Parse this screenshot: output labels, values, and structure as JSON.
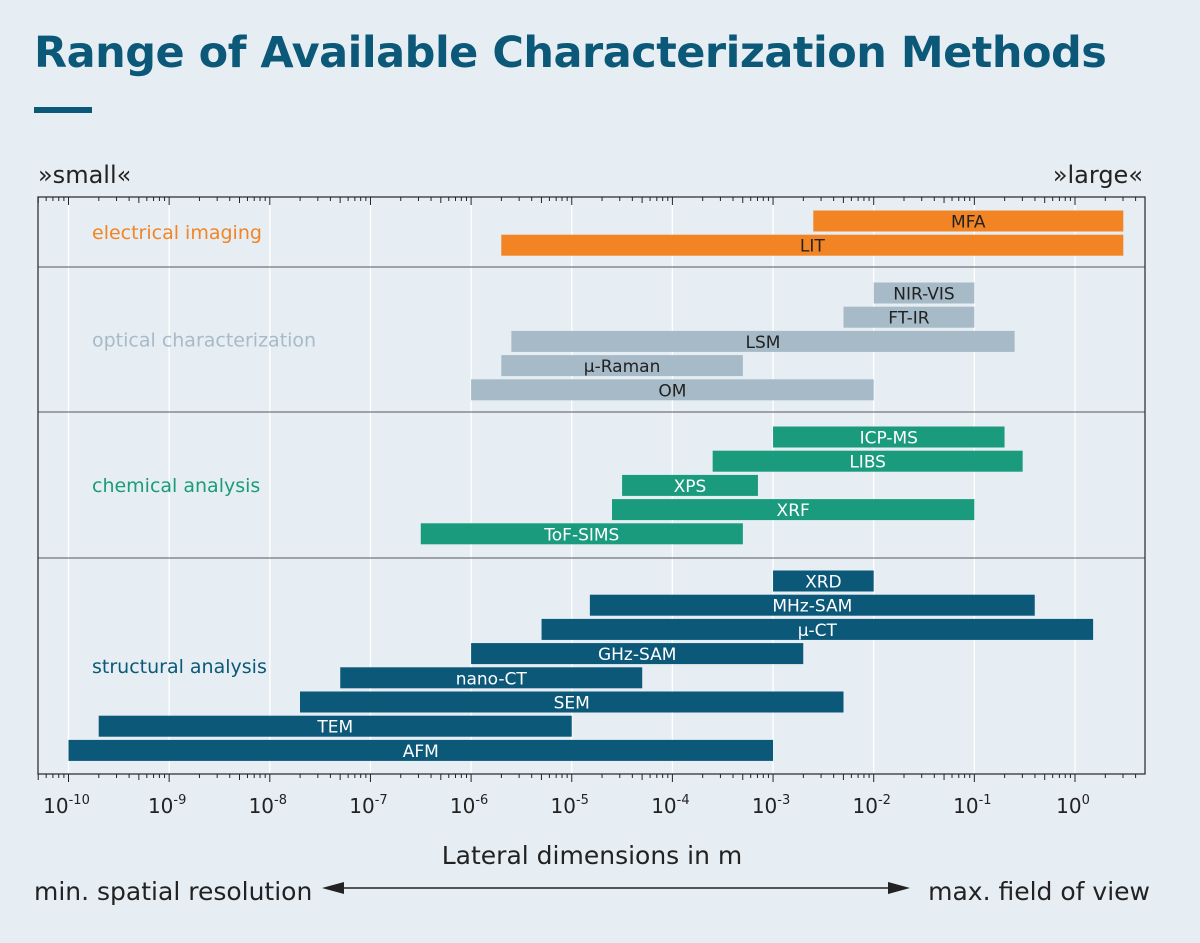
{
  "header": {
    "title": "Range of Available Characterization Methods",
    "small_label": "»small«",
    "large_label": "»large«"
  },
  "footer": {
    "xlabel": "Lateral dimensions in m",
    "left_caption": "min. spatial resolution",
    "right_caption": "max. field of view"
  },
  "colors": {
    "electrical": "#f28424",
    "optical": "#a6bac7",
    "chemical": "#1a9b7d",
    "structural": "#0b5878",
    "gridline": "#ffffff",
    "frame": "#333333"
  },
  "chart_data": {
    "type": "bar",
    "orientation": "horizontal",
    "xscale": "log",
    "xlim_exponent": [
      -10.3,
      0.7
    ],
    "xlabel": "Lateral dimensions in m",
    "tick_base": "10",
    "tick_exponents": [
      "-10",
      "-9",
      "-8",
      "-7",
      "-6",
      "-5",
      "-4",
      "-3",
      "-2",
      "-1",
      "0"
    ],
    "groups": [
      {
        "name": "electrical imaging",
        "color_key": "electrical",
        "label_color_key": "electrical",
        "text_color": "#222222",
        "methods": [
          {
            "label": "MFA",
            "min_exp": -2.6,
            "max_exp": 0.48
          },
          {
            "label": "LIT",
            "min_exp": -5.7,
            "max_exp": 0.48
          }
        ]
      },
      {
        "name": "optical characterization",
        "color_key": "optical",
        "label_color_key": "optical",
        "text_color": "#222222",
        "methods": [
          {
            "label": "NIR-VIS",
            "min_exp": -2.0,
            "max_exp": -1.0
          },
          {
            "label": "FT-IR",
            "min_exp": -2.3,
            "max_exp": -1.0
          },
          {
            "label": "LSM",
            "min_exp": -5.6,
            "max_exp": -0.6
          },
          {
            "label": "µ-Raman",
            "min_exp": -5.7,
            "max_exp": -3.3
          },
          {
            "label": "OM",
            "min_exp": -6.0,
            "max_exp": -2.0
          }
        ]
      },
      {
        "name": "chemical analysis",
        "color_key": "chemical",
        "label_color_key": "chemical",
        "text_color": "#ffffff",
        "methods": [
          {
            "label": "ICP-MS",
            "min_exp": -3.0,
            "max_exp": -0.7
          },
          {
            "label": "LIBS",
            "min_exp": -3.6,
            "max_exp": -0.52
          },
          {
            "label": "XPS",
            "min_exp": -4.5,
            "max_exp": -3.15
          },
          {
            "label": "XRF",
            "min_exp": -4.6,
            "max_exp": -1.0
          },
          {
            "label": "ToF-SIMS",
            "min_exp": -6.5,
            "max_exp": -3.3
          }
        ]
      },
      {
        "name": "structural analysis",
        "color_key": "structural",
        "label_color_key": "structural",
        "text_color": "#ffffff",
        "methods": [
          {
            "label": "XRD",
            "min_exp": -3.0,
            "max_exp": -2.0
          },
          {
            "label": "MHz-SAM",
            "min_exp": -4.82,
            "max_exp": -0.4
          },
          {
            "label": "µ-CT",
            "min_exp": -5.3,
            "max_exp": 0.18
          },
          {
            "label": "GHz-SAM",
            "min_exp": -6.0,
            "max_exp": -2.7
          },
          {
            "label": "nano-CT",
            "min_exp": -7.3,
            "max_exp": -4.3
          },
          {
            "label": "SEM",
            "min_exp": -7.7,
            "max_exp": -2.3
          },
          {
            "label": "TEM",
            "min_exp": -9.7,
            "max_exp": -5.0
          },
          {
            "label": "AFM",
            "min_exp": -10.0,
            "max_exp": -3.0
          }
        ]
      }
    ]
  }
}
